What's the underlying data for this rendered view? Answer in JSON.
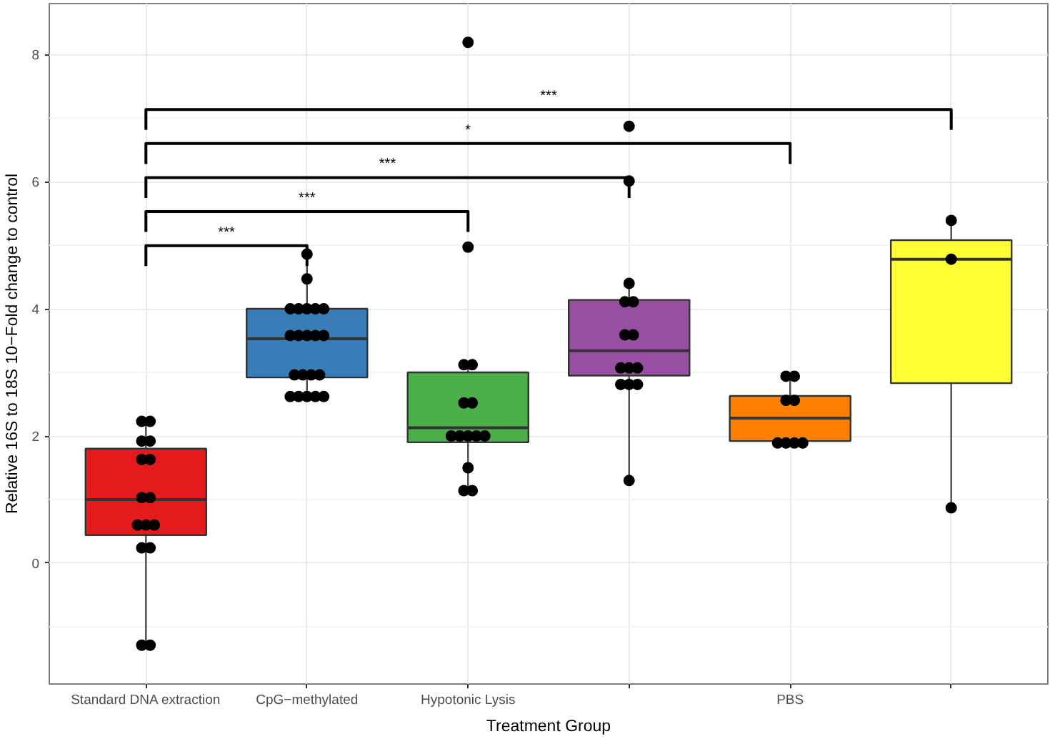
{
  "chart_data": {
    "type": "box",
    "xlabel": "Treatment Group",
    "ylabel": "Relative 16S to 18S 10−Fold change to control",
    "categories": [
      "Standard DNA extraction",
      "CpG−methylated",
      "Hypotonic Lysis",
      null,
      "PBS",
      null
    ],
    "ylim": [
      -1.9,
      8.8
    ],
    "yticks": [
      0,
      2,
      4,
      6,
      8
    ],
    "grid": true,
    "marker": "circle",
    "annotations": [
      "***",
      "***",
      "***",
      "*",
      "***"
    ],
    "series": [
      {
        "colors": [
          "#e41a1c",
          "#377eb8",
          "#4daf4a",
          "#984ea3",
          "#ff7f00",
          "#ffff33"
        ],
        "boxes": [
          {
            "low": -1.29,
            "q1": 0.44,
            "median": 1.0,
            "q3": 1.8,
            "high": 2.23
          },
          {
            "low": 2.62,
            "q1": 2.92,
            "median": 3.53,
            "q3": 4.0,
            "high": 4.86
          },
          {
            "low": 1.14,
            "q1": 1.9,
            "median": 2.13,
            "q3": 3.0,
            "high": 3.12,
            "outliers": [
              8.19,
              4.97
            ]
          },
          {
            "low": 1.3,
            "q1": 2.95,
            "median": 3.34,
            "q3": 4.14,
            "high": 4.4,
            "outliers": [
              6.87,
              6.01
            ]
          },
          {
            "low": 1.89,
            "q1": 1.92,
            "median": 2.28,
            "q3": 2.63,
            "high": 2.94
          },
          {
            "low": 0.87,
            "q1": 2.83,
            "median": 4.78,
            "q3": 5.08,
            "high": 5.39
          }
        ]
      },
      {
        "type": "scatter",
        "color": "#000000",
        "values": [
          2.23,
          4.86,
          3.12,
          4.4,
          2.94,
          5.39
        ]
      },
      {
        "type": "scatter",
        "color": "#000000",
        "values": [
          2.23,
          4.47,
          3.12,
          4.11,
          2.94,
          4.78
        ]
      },
      {
        "type": "scatter",
        "color": "#000000",
        "values": [
          1.92,
          4.0,
          2.52,
          4.11,
          2.56,
          0.87
        ]
      },
      {
        "type": "scatter",
        "color": "#000000",
        "values": [
          1.92,
          4.0,
          2.52,
          3.59,
          2.56,
          null
        ]
      },
      {
        "type": "scatter",
        "color": "#000000",
        "values": [
          1.63,
          4.0,
          2.0,
          3.59,
          1.89,
          null
        ]
      },
      {
        "type": "scatter",
        "color": "#000000",
        "values": [
          1.63,
          4.0,
          2.0,
          3.07,
          1.89,
          null
        ]
      },
      {
        "type": "scatter",
        "color": "#000000",
        "values": [
          1.03,
          4.0,
          2.0,
          3.07,
          1.89,
          null
        ]
      },
      {
        "type": "scatter",
        "color": "#000000",
        "values": [
          1.03,
          3.58,
          2.0,
          3.07,
          1.89,
          null
        ]
      },
      {
        "type": "scatter",
        "color": "#000000",
        "values": [
          0.6,
          3.58,
          2.0,
          2.81,
          null,
          null
        ]
      },
      {
        "type": "scatter",
        "color": "#000000",
        "values": [
          0.6,
          3.58,
          1.5,
          2.81,
          null,
          null
        ]
      },
      {
        "type": "scatter",
        "color": "#000000",
        "values": [
          0.6,
          3.58,
          1.14,
          2.81,
          null,
          null
        ]
      },
      {
        "type": "scatter",
        "color": "#000000",
        "values": [
          0.24,
          3.58,
          1.14,
          1.3,
          null,
          null
        ]
      },
      {
        "type": "scatter",
        "color": "#000000",
        "values": [
          0.24,
          2.96,
          null,
          null,
          null,
          null
        ]
      },
      {
        "type": "scatter",
        "color": "#000000",
        "values": [
          -1.29,
          2.96,
          null,
          null,
          null,
          null
        ]
      },
      {
        "type": "scatter",
        "color": "#000000",
        "values": [
          -1.29,
          2.96,
          null,
          null,
          null,
          null
        ]
      },
      {
        "type": "scatter",
        "color": "#000000",
        "values": [
          null,
          2.96,
          null,
          null,
          null,
          null
        ]
      },
      {
        "type": "scatter",
        "color": "#000000",
        "values": [
          null,
          2.62,
          null,
          null,
          null,
          null
        ]
      },
      {
        "type": "scatter",
        "color": "#000000",
        "values": [
          null,
          2.62,
          null,
          null,
          null,
          null
        ]
      },
      {
        "type": "scatter",
        "color": "#000000",
        "values": [
          null,
          2.62,
          null,
          null,
          null,
          null
        ]
      },
      {
        "type": "scatter",
        "color": "#000000",
        "values": [
          null,
          2.62,
          null,
          null,
          null,
          null
        ]
      },
      {
        "type": "scatter",
        "color": "#000000",
        "values": [
          null,
          2.62,
          null,
          null,
          null,
          null
        ]
      }
    ]
  }
}
